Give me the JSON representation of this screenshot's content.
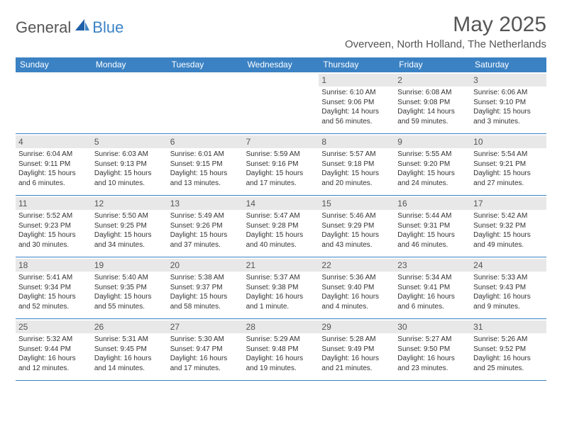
{
  "logo": {
    "text1": "General",
    "text2": "Blue"
  },
  "title": "May 2025",
  "location": "Overveen, North Holland, The Netherlands",
  "colors": {
    "header_bg": "#3b82c4",
    "header_text": "#ffffff",
    "daynum_bg": "#e8e8e8",
    "border": "#3b82c4",
    "text": "#333333",
    "background": "#ffffff"
  },
  "weekdays": [
    "Sunday",
    "Monday",
    "Tuesday",
    "Wednesday",
    "Thursday",
    "Friday",
    "Saturday"
  ],
  "weeks": [
    [
      {
        "empty": true
      },
      {
        "empty": true
      },
      {
        "empty": true
      },
      {
        "empty": true
      },
      {
        "day": "1",
        "sunrise": "Sunrise: 6:10 AM",
        "sunset": "Sunset: 9:06 PM",
        "daylight1": "Daylight: 14 hours",
        "daylight2": "and 56 minutes."
      },
      {
        "day": "2",
        "sunrise": "Sunrise: 6:08 AM",
        "sunset": "Sunset: 9:08 PM",
        "daylight1": "Daylight: 14 hours",
        "daylight2": "and 59 minutes."
      },
      {
        "day": "3",
        "sunrise": "Sunrise: 6:06 AM",
        "sunset": "Sunset: 9:10 PM",
        "daylight1": "Daylight: 15 hours",
        "daylight2": "and 3 minutes."
      }
    ],
    [
      {
        "day": "4",
        "sunrise": "Sunrise: 6:04 AM",
        "sunset": "Sunset: 9:11 PM",
        "daylight1": "Daylight: 15 hours",
        "daylight2": "and 6 minutes."
      },
      {
        "day": "5",
        "sunrise": "Sunrise: 6:03 AM",
        "sunset": "Sunset: 9:13 PM",
        "daylight1": "Daylight: 15 hours",
        "daylight2": "and 10 minutes."
      },
      {
        "day": "6",
        "sunrise": "Sunrise: 6:01 AM",
        "sunset": "Sunset: 9:15 PM",
        "daylight1": "Daylight: 15 hours",
        "daylight2": "and 13 minutes."
      },
      {
        "day": "7",
        "sunrise": "Sunrise: 5:59 AM",
        "sunset": "Sunset: 9:16 PM",
        "daylight1": "Daylight: 15 hours",
        "daylight2": "and 17 minutes."
      },
      {
        "day": "8",
        "sunrise": "Sunrise: 5:57 AM",
        "sunset": "Sunset: 9:18 PM",
        "daylight1": "Daylight: 15 hours",
        "daylight2": "and 20 minutes."
      },
      {
        "day": "9",
        "sunrise": "Sunrise: 5:55 AM",
        "sunset": "Sunset: 9:20 PM",
        "daylight1": "Daylight: 15 hours",
        "daylight2": "and 24 minutes."
      },
      {
        "day": "10",
        "sunrise": "Sunrise: 5:54 AM",
        "sunset": "Sunset: 9:21 PM",
        "daylight1": "Daylight: 15 hours",
        "daylight2": "and 27 minutes."
      }
    ],
    [
      {
        "day": "11",
        "sunrise": "Sunrise: 5:52 AM",
        "sunset": "Sunset: 9:23 PM",
        "daylight1": "Daylight: 15 hours",
        "daylight2": "and 30 minutes."
      },
      {
        "day": "12",
        "sunrise": "Sunrise: 5:50 AM",
        "sunset": "Sunset: 9:25 PM",
        "daylight1": "Daylight: 15 hours",
        "daylight2": "and 34 minutes."
      },
      {
        "day": "13",
        "sunrise": "Sunrise: 5:49 AM",
        "sunset": "Sunset: 9:26 PM",
        "daylight1": "Daylight: 15 hours",
        "daylight2": "and 37 minutes."
      },
      {
        "day": "14",
        "sunrise": "Sunrise: 5:47 AM",
        "sunset": "Sunset: 9:28 PM",
        "daylight1": "Daylight: 15 hours",
        "daylight2": "and 40 minutes."
      },
      {
        "day": "15",
        "sunrise": "Sunrise: 5:46 AM",
        "sunset": "Sunset: 9:29 PM",
        "daylight1": "Daylight: 15 hours",
        "daylight2": "and 43 minutes."
      },
      {
        "day": "16",
        "sunrise": "Sunrise: 5:44 AM",
        "sunset": "Sunset: 9:31 PM",
        "daylight1": "Daylight: 15 hours",
        "daylight2": "and 46 minutes."
      },
      {
        "day": "17",
        "sunrise": "Sunrise: 5:42 AM",
        "sunset": "Sunset: 9:32 PM",
        "daylight1": "Daylight: 15 hours",
        "daylight2": "and 49 minutes."
      }
    ],
    [
      {
        "day": "18",
        "sunrise": "Sunrise: 5:41 AM",
        "sunset": "Sunset: 9:34 PM",
        "daylight1": "Daylight: 15 hours",
        "daylight2": "and 52 minutes."
      },
      {
        "day": "19",
        "sunrise": "Sunrise: 5:40 AM",
        "sunset": "Sunset: 9:35 PM",
        "daylight1": "Daylight: 15 hours",
        "daylight2": "and 55 minutes."
      },
      {
        "day": "20",
        "sunrise": "Sunrise: 5:38 AM",
        "sunset": "Sunset: 9:37 PM",
        "daylight1": "Daylight: 15 hours",
        "daylight2": "and 58 minutes."
      },
      {
        "day": "21",
        "sunrise": "Sunrise: 5:37 AM",
        "sunset": "Sunset: 9:38 PM",
        "daylight1": "Daylight: 16 hours",
        "daylight2": "and 1 minute."
      },
      {
        "day": "22",
        "sunrise": "Sunrise: 5:36 AM",
        "sunset": "Sunset: 9:40 PM",
        "daylight1": "Daylight: 16 hours",
        "daylight2": "and 4 minutes."
      },
      {
        "day": "23",
        "sunrise": "Sunrise: 5:34 AM",
        "sunset": "Sunset: 9:41 PM",
        "daylight1": "Daylight: 16 hours",
        "daylight2": "and 6 minutes."
      },
      {
        "day": "24",
        "sunrise": "Sunrise: 5:33 AM",
        "sunset": "Sunset: 9:43 PM",
        "daylight1": "Daylight: 16 hours",
        "daylight2": "and 9 minutes."
      }
    ],
    [
      {
        "day": "25",
        "sunrise": "Sunrise: 5:32 AM",
        "sunset": "Sunset: 9:44 PM",
        "daylight1": "Daylight: 16 hours",
        "daylight2": "and 12 minutes."
      },
      {
        "day": "26",
        "sunrise": "Sunrise: 5:31 AM",
        "sunset": "Sunset: 9:45 PM",
        "daylight1": "Daylight: 16 hours",
        "daylight2": "and 14 minutes."
      },
      {
        "day": "27",
        "sunrise": "Sunrise: 5:30 AM",
        "sunset": "Sunset: 9:47 PM",
        "daylight1": "Daylight: 16 hours",
        "daylight2": "and 17 minutes."
      },
      {
        "day": "28",
        "sunrise": "Sunrise: 5:29 AM",
        "sunset": "Sunset: 9:48 PM",
        "daylight1": "Daylight: 16 hours",
        "daylight2": "and 19 minutes."
      },
      {
        "day": "29",
        "sunrise": "Sunrise: 5:28 AM",
        "sunset": "Sunset: 9:49 PM",
        "daylight1": "Daylight: 16 hours",
        "daylight2": "and 21 minutes."
      },
      {
        "day": "30",
        "sunrise": "Sunrise: 5:27 AM",
        "sunset": "Sunset: 9:50 PM",
        "daylight1": "Daylight: 16 hours",
        "daylight2": "and 23 minutes."
      },
      {
        "day": "31",
        "sunrise": "Sunrise: 5:26 AM",
        "sunset": "Sunset: 9:52 PM",
        "daylight1": "Daylight: 16 hours",
        "daylight2": "and 25 minutes."
      }
    ]
  ]
}
